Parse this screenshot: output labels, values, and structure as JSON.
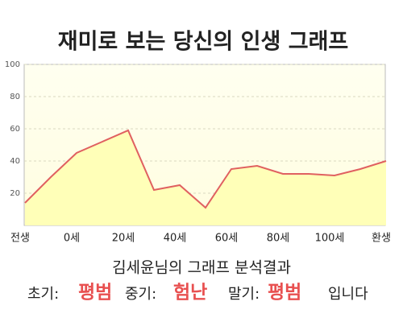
{
  "chart_data": {
    "type": "area",
    "title": "재미로 보는 당신의 인생 그래프",
    "categories": [
      "전생",
      null,
      "0세",
      null,
      "20세",
      null,
      "40세",
      null,
      "60세",
      null,
      "80세",
      null,
      "100세",
      null,
      "환생"
    ],
    "values": [
      14,
      30,
      45,
      52,
      59,
      22,
      25,
      11,
      35,
      37,
      32,
      32,
      31,
      35,
      40
    ],
    "color": "#e06060",
    "fill": "#ffffb8",
    "ylim": [
      0,
      100
    ],
    "yticks": [
      20,
      40,
      60,
      80,
      100
    ],
    "grid": true
  },
  "analysis": {
    "title": "김세윤님의 그래프 분석결과",
    "results": [
      {
        "label": "초기:",
        "value": "평범"
      },
      {
        "label": "중기:",
        "value": "험난"
      },
      {
        "label": "말기:",
        "value": "평범"
      }
    ],
    "suffix": "입니다",
    "highlight_color": "#e85050"
  }
}
